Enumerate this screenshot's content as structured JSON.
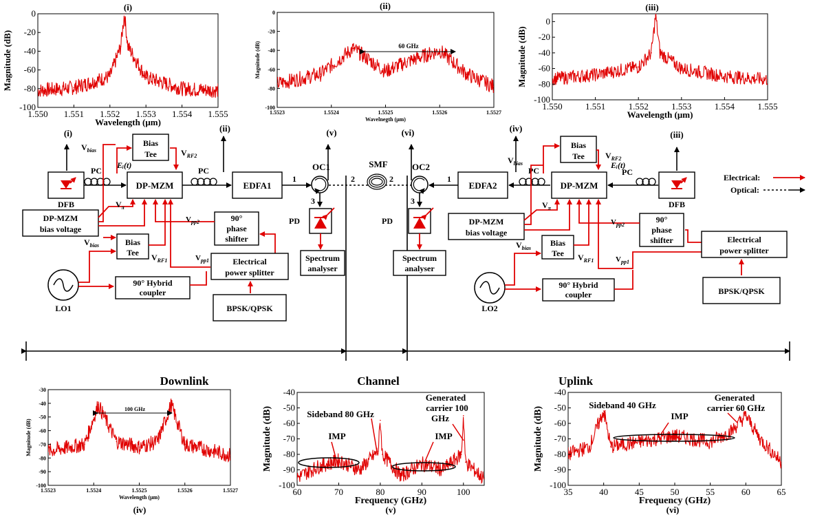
{
  "panel_labels": {
    "i": "(i)",
    "ii": "(ii)",
    "iii": "(iii)",
    "iv": "(iv)",
    "v": "(v)",
    "vi": "(vi)"
  },
  "sections": {
    "downlink": "Downlink",
    "channel": "Channel",
    "uplink": "Uplink"
  },
  "blocks": {
    "dfb": "DFB",
    "pc": "PC",
    "bias_tee_1": "Bias",
    "bias_tee_2": "Tee",
    "dpmzm": "DP-MZM",
    "edfa1": "EDFA1",
    "edfa2": "EDFA2",
    "oc1": "OC1",
    "oc2": "OC2",
    "smf": "SMF",
    "pd": "PD",
    "dpmzm_bias_1": "DP-MZM",
    "dpmzm_bias_2": "bias voltage",
    "shifter_1": "90°",
    "shifter_2": "phase",
    "shifter_3": "shifter",
    "splitter_1": "Electrical",
    "splitter_2": "power splitter",
    "hybrid_1": "90° Hybrid",
    "hybrid_2": "coupler",
    "lo1": "LO1",
    "lo2": "LO2",
    "bpsk": "BPSK/QPSK",
    "spec_1": "Spectrum",
    "spec_2": "analyser"
  },
  "signals": {
    "v": "V",
    "bias": "bias",
    "rf2": "RF2",
    "rf1": "RF1",
    "pi": "π",
    "pp2": "pp2",
    "pp1": "pp1",
    "ei": "Eᵢ(t)"
  },
  "ports": {
    "p1": "1",
    "p2": "2",
    "p3": "3"
  },
  "legend": {
    "electrical": "Electrical:",
    "optical": "Optical:"
  },
  "colors": {
    "trace": "#e00000",
    "line": "#000000"
  },
  "chart_data": [
    {
      "panel": "(i)",
      "type": "line",
      "xlabel": "Wavelength (μm)",
      "ylabel": "Magnitude (dB)",
      "xlim": [
        1.55,
        1.555
      ],
      "ylim": [
        -100,
        0
      ],
      "xticks": [
        "1.550",
        "1.551",
        "1.552",
        "1.553",
        "1.554",
        "1.555"
      ],
      "yticks": [
        "0",
        "-20",
        "-40",
        "-60",
        "-80",
        "-100"
      ],
      "series": [
        {
          "values": [
            [
              1.55,
              -82
            ],
            [
              1.551,
              -79
            ],
            [
              1.552,
              -67
            ],
            [
              1.5523,
              -35
            ],
            [
              1.5524,
              0
            ],
            [
              1.5525,
              -35
            ],
            [
              1.553,
              -68
            ],
            [
              1.554,
              -80
            ],
            [
              1.555,
              -82
            ]
          ]
        }
      ]
    },
    {
      "panel": "(ii)",
      "type": "line",
      "xlabel": "Wavelnegth (μm)",
      "ylabel": "Magnitude (dB)",
      "xlim": [
        1.5523,
        1.5527
      ],
      "ylim": [
        -100,
        0
      ],
      "xticks": [
        "1.5523",
        "1.5524",
        "1.5525",
        "1.5526",
        "1.5527"
      ],
      "yticks": [
        "0",
        "-20",
        "-40",
        "-60",
        "-80",
        "-100"
      ],
      "annotations": [
        "60 GHz"
      ],
      "series": [
        {
          "values": [
            [
              1.5523,
              -75
            ],
            [
              1.55238,
              -65
            ],
            [
              1.55244,
              -38
            ],
            [
              1.5525,
              -62
            ],
            [
              1.55254,
              -52
            ],
            [
              1.5526,
              -40
            ],
            [
              1.55265,
              -65
            ],
            [
              1.5527,
              -78
            ]
          ]
        }
      ]
    },
    {
      "panel": "(iii)",
      "type": "line",
      "xlabel": "Wavelength (μm)",
      "ylabel": "Magnitude (dB)",
      "xlim": [
        1.55,
        1.555
      ],
      "ylim": [
        -100,
        10
      ],
      "xticks": [
        "1.550",
        "1.551",
        "1.552",
        "1.553",
        "1.554",
        "1.555"
      ],
      "yticks": [
        "0",
        "-20",
        "-40",
        "-60",
        "-80",
        "-100"
      ],
      "series": [
        {
          "values": [
            [
              1.55,
              -73
            ],
            [
              1.551,
              -68
            ],
            [
              1.552,
              -58
            ],
            [
              1.5523,
              -40
            ],
            [
              1.5524,
              8
            ],
            [
              1.5525,
              -40
            ],
            [
              1.553,
              -60
            ],
            [
              1.554,
              -70
            ],
            [
              1.555,
              -74
            ]
          ]
        }
      ]
    },
    {
      "panel": "(iv)",
      "type": "line",
      "xlabel": "Wavelength (μm)",
      "ylabel": "Magnitude (dB)",
      "xlim": [
        1.5523,
        1.5527
      ],
      "ylim": [
        -100,
        -30
      ],
      "xticks": [
        "1.5523",
        "1.5524",
        "1.5525",
        "1.5526",
        "1.5527"
      ],
      "yticks": [
        "-30",
        "-40",
        "-50",
        "-60",
        "-70",
        "-80",
        "-90",
        "-100"
      ],
      "annotations": [
        "100 GHz"
      ],
      "series": [
        {
          "values": [
            [
              1.5523,
              -75
            ],
            [
              1.55238,
              -70
            ],
            [
              1.55241,
              -41
            ],
            [
              1.55245,
              -68
            ],
            [
              1.5525,
              -72
            ],
            [
              1.55254,
              -68
            ],
            [
              1.55257,
              -41
            ],
            [
              1.5526,
              -70
            ],
            [
              1.5527,
              -78
            ]
          ]
        }
      ]
    },
    {
      "panel": "(v)",
      "type": "line",
      "xlabel": "Frequency (GHz)",
      "ylabel": "Magnitude (dB)",
      "xlim": [
        60,
        105
      ],
      "ylim": [
        -100,
        -40
      ],
      "xticks": [
        "60",
        "70",
        "80",
        "90",
        "100"
      ],
      "yticks": [
        "-40",
        "-50",
        "-60",
        "-70",
        "-80",
        "-90",
        "-100"
      ],
      "annotations": [
        "Generated",
        "carrier 100",
        "GHz",
        "Sideband 80 GHz",
        "IMP",
        "IMP"
      ],
      "series": [
        {
          "values": [
            [
              60,
              -95
            ],
            [
              65,
              -88
            ],
            [
              70,
              -84
            ],
            [
              75,
              -90
            ],
            [
              79.5,
              -78
            ],
            [
              80,
              -58
            ],
            [
              80.5,
              -80
            ],
            [
              85,
              -94
            ],
            [
              90,
              -86
            ],
            [
              95,
              -90
            ],
            [
              99.5,
              -80
            ],
            [
              100,
              -55
            ],
            [
              100.5,
              -85
            ],
            [
              105,
              -96
            ]
          ]
        }
      ]
    },
    {
      "panel": "(vi)",
      "type": "line",
      "xlabel": "Frequency (GHz)",
      "ylabel": "Magnitude (dB)",
      "xlim": [
        35,
        65
      ],
      "ylim": [
        -100,
        -40
      ],
      "xticks": [
        "35",
        "40",
        "45",
        "50",
        "55",
        "60",
        "65"
      ],
      "yticks": [
        "-40",
        "-50",
        "-60",
        "-70",
        "-80",
        "-90",
        "-100"
      ],
      "annotations": [
        "Sideband 40 GHz",
        "Generated",
        "carrier 60 GHz",
        "IMP"
      ],
      "series": [
        {
          "values": [
            [
              35,
              -80
            ],
            [
              38,
              -75
            ],
            [
              40,
              -52
            ],
            [
              41,
              -75
            ],
            [
              45,
              -72
            ],
            [
              50,
              -68
            ],
            [
              55,
              -72
            ],
            [
              58,
              -65
            ],
            [
              60,
              -55
            ],
            [
              62,
              -70
            ],
            [
              65,
              -85
            ]
          ]
        }
      ]
    }
  ]
}
